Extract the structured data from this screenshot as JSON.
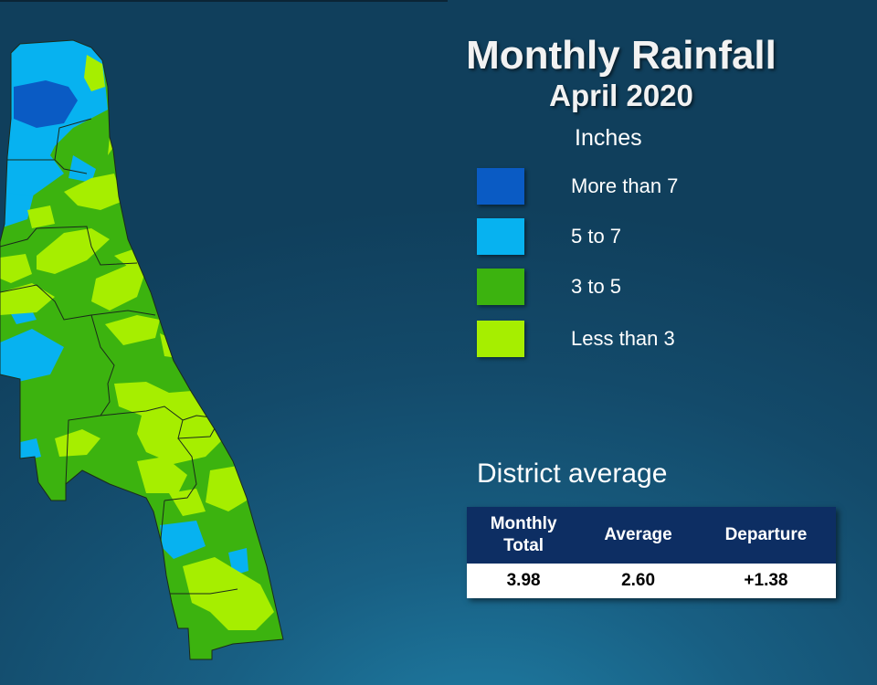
{
  "title": "Monthly Rainfall",
  "subtitle": "April 2020",
  "legend": {
    "title": "Inches",
    "items": [
      {
        "label": "More than 7",
        "color": "#0a5bc4"
      },
      {
        "label": "5 to 7",
        "color": "#07b2f0"
      },
      {
        "label": "3 to 5",
        "color": "#3cb30f"
      },
      {
        "label": "Less than 3",
        "color": "#a6ee00"
      }
    ]
  },
  "district": {
    "title": "District average",
    "headers": [
      "Monthly",
      "Total",
      "Average",
      "Departure"
    ],
    "values": [
      "3.98",
      "2.60",
      "+1.38"
    ]
  }
}
